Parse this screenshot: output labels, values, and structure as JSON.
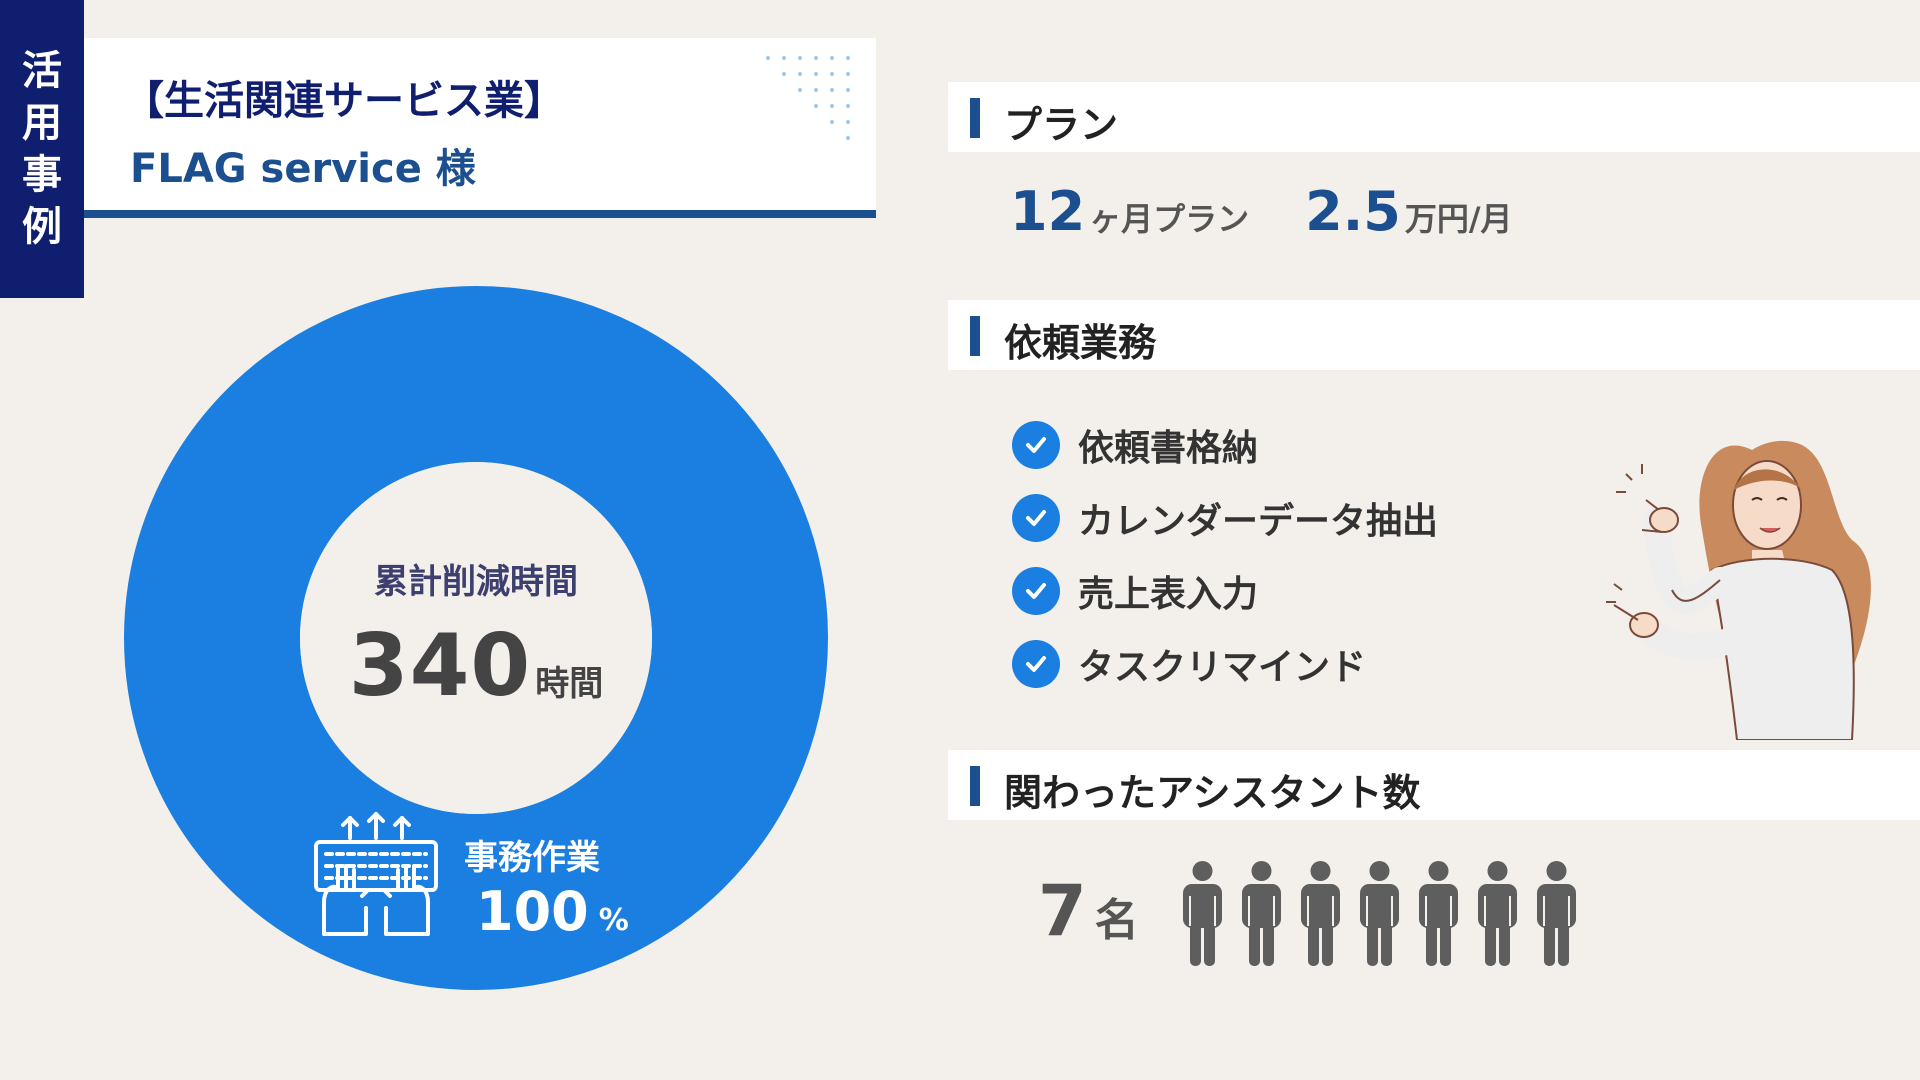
{
  "side_tab": {
    "chars": [
      "活",
      "用",
      "事",
      "例"
    ]
  },
  "header": {
    "category": "【生活関連サービス業】",
    "client": "FLAG service 様"
  },
  "donut": {
    "center_label": "累計削減時間",
    "total_value": "340",
    "total_unit": "時間",
    "segment_label": "事務作業",
    "segment_value": "100",
    "segment_unit": "%",
    "segment_fraction": 1.0,
    "color": "#1a7fe0"
  },
  "plan": {
    "heading": "プラン",
    "term_value": "12",
    "term_unit": "ヶ月プラン",
    "price_value": "2.5",
    "price_unit": "万円/月"
  },
  "tasks": {
    "heading": "依頼業務",
    "items": [
      "依頼書格納",
      "カレンダーデータ抽出",
      "売上表入力",
      "タスクリマインド"
    ]
  },
  "assistants": {
    "heading": "関わったアシスタント数",
    "count": "7",
    "unit": "名",
    "person_icon_count": 7
  },
  "colors": {
    "navy": "#0f1e6e",
    "accent_blue": "#1b4f8f",
    "donut_blue": "#1a7fe0",
    "background": "#f3efea"
  }
}
